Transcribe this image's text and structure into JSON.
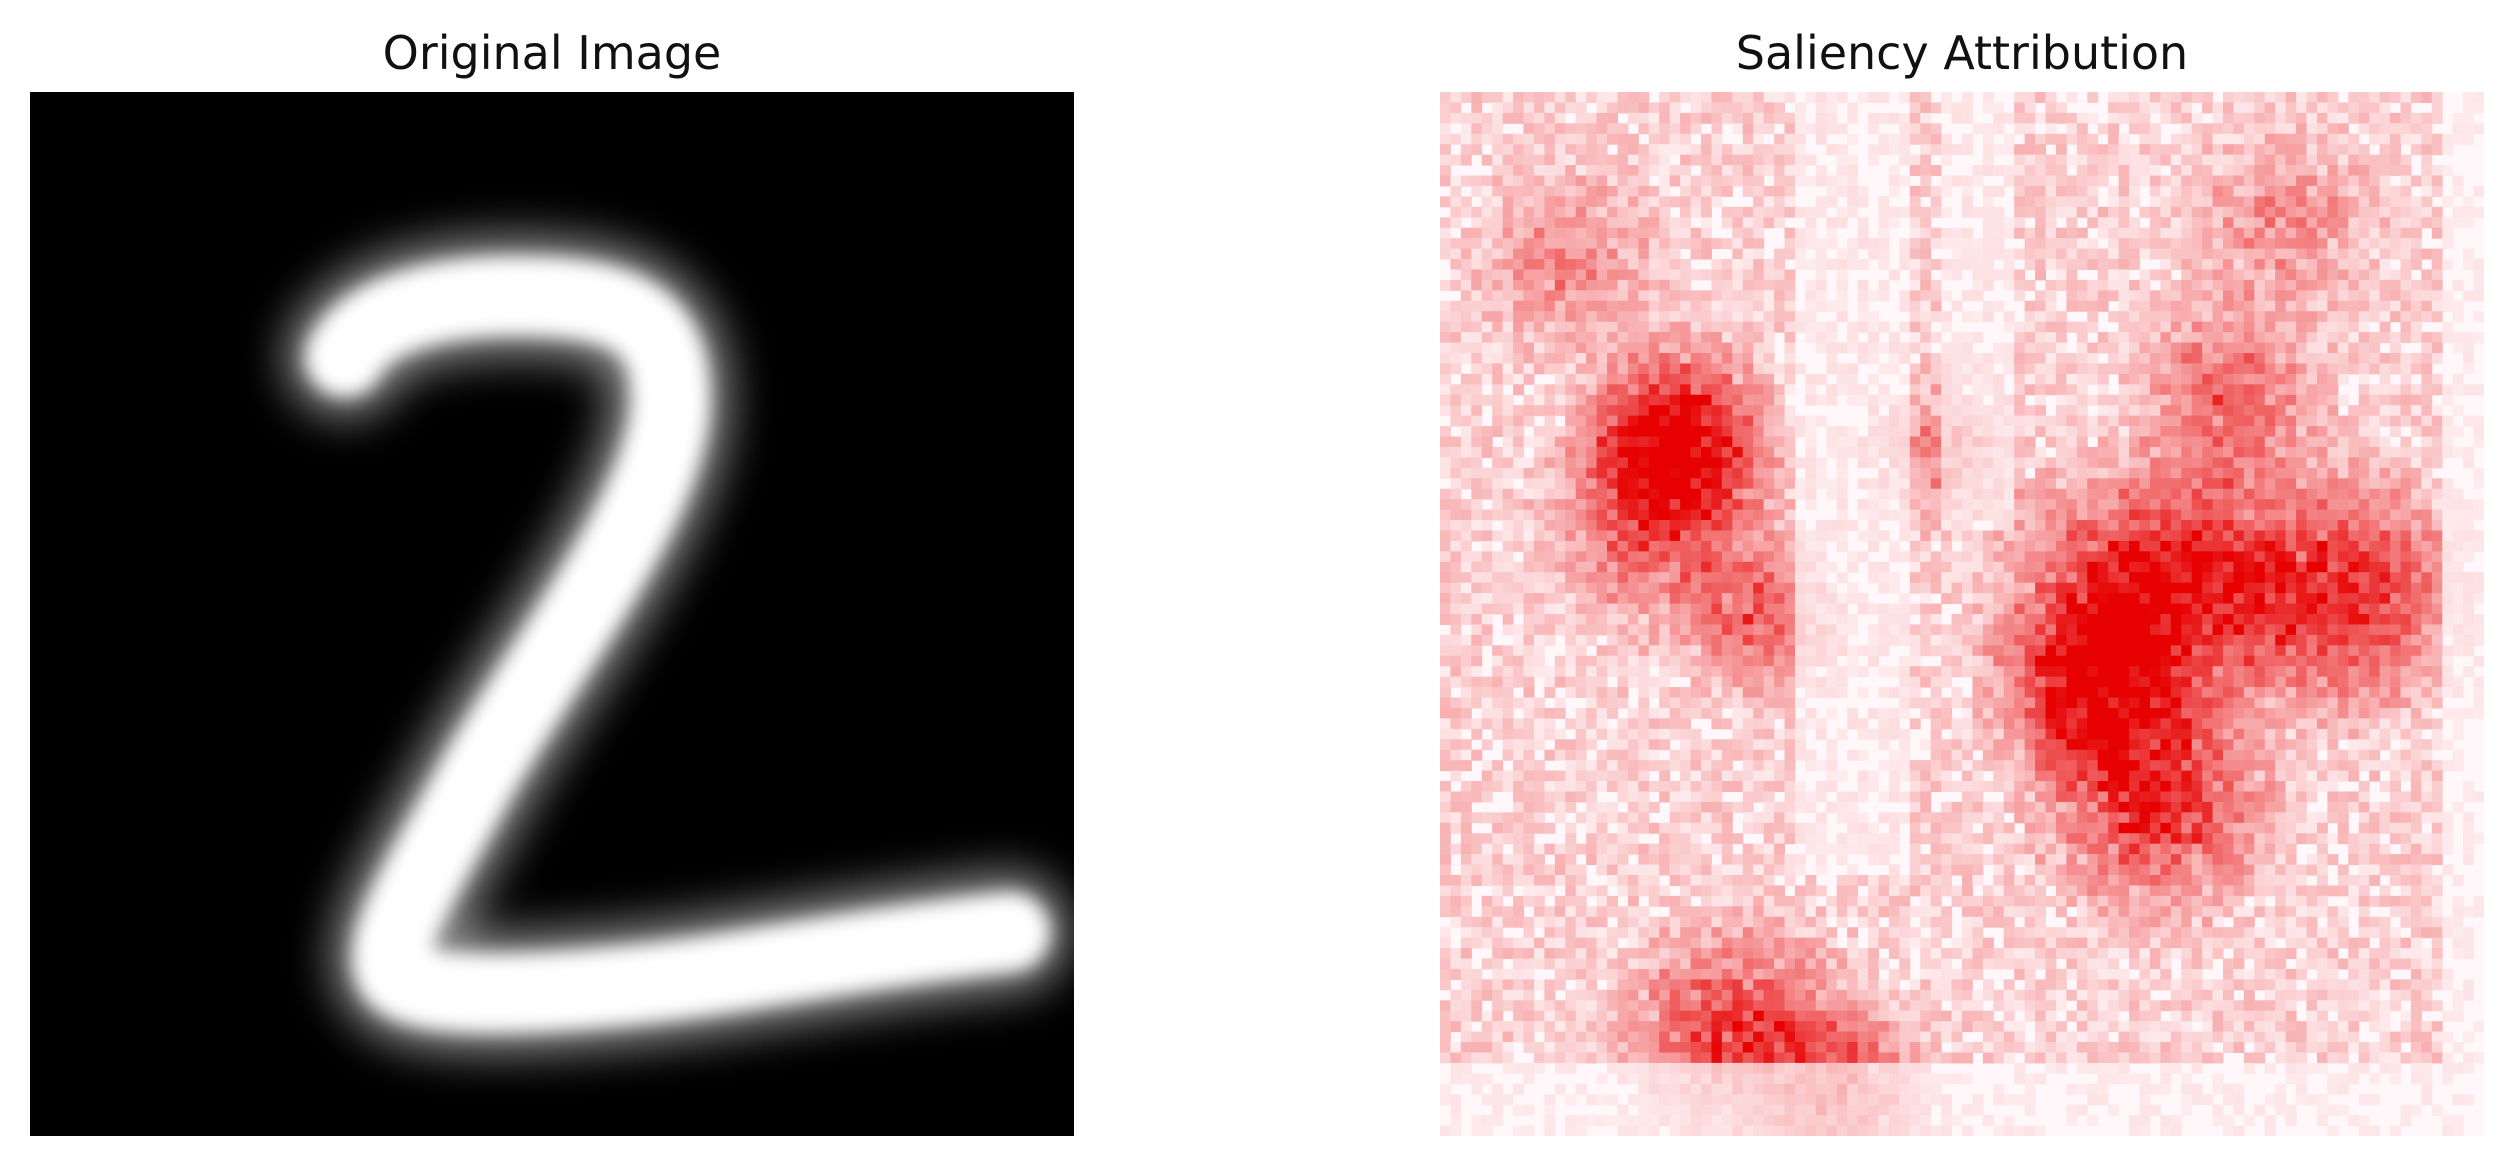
{
  "panels": {
    "left": {
      "title": "Original Image",
      "content": "handwritten-digit",
      "colormap": "gray",
      "background_color": "#000000",
      "stroke_color": "#ffffff"
    },
    "right": {
      "title": "Saliency Attribution",
      "content": "saliency-heatmap",
      "colormap": "Reds",
      "background_color": "#fff7f9",
      "highlight_color": "#e60000"
    }
  }
}
